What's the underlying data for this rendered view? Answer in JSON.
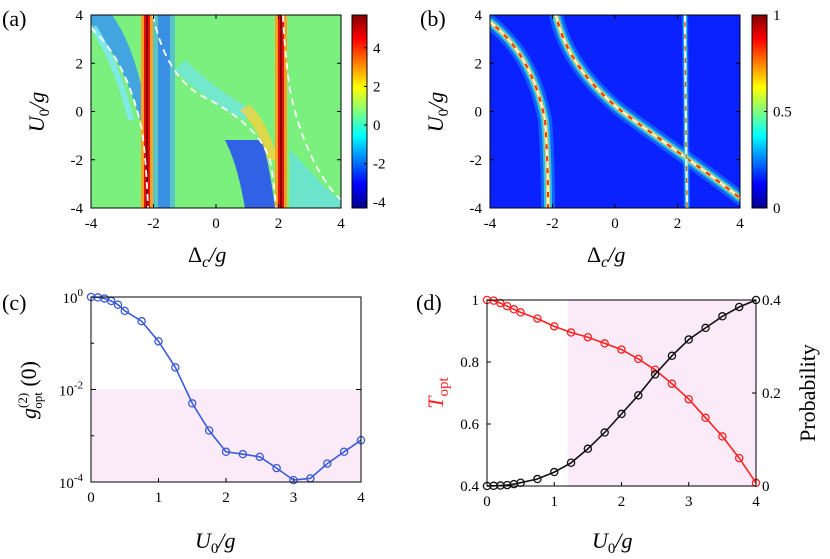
{
  "chart_data": [
    {
      "panel": "(a)",
      "type": "heatmap",
      "xlabel": "Δc/g",
      "ylabel": "U0/g",
      "xlim": [
        -4,
        4
      ],
      "ylim": [
        -4,
        4
      ],
      "xticks": [
        -4,
        -2,
        0,
        2,
        4
      ],
      "yticks": [
        -4,
        -2,
        0,
        2,
        4
      ],
      "colorbar": {
        "ticks": [
          -4,
          -2,
          0,
          2,
          4
        ],
        "range": [
          -4.3,
          5.7
        ],
        "colormap": "jet"
      },
      "overlay": "white dashed lines",
      "description_features": {
        "background_value": 0,
        "peak_lines": [
          {
            "x": -2.1,
            "value": 5.5
          },
          {
            "x": 2.0,
            "value": 5.5
          }
        ]
      }
    },
    {
      "panel": "(b)",
      "type": "heatmap",
      "xlabel": "Δc/g",
      "ylabel": "U0/g",
      "xlim": [
        -4,
        4
      ],
      "ylim": [
        -4,
        4
      ],
      "xticks": [
        -4,
        -2,
        0,
        2,
        4
      ],
      "yticks": [
        -4,
        -2,
        0,
        2,
        4
      ],
      "colorbar": {
        "ticks": [
          0,
          0.5,
          1
        ],
        "tick_labels": [
          "0",
          "0.5",
          "1"
        ],
        "range": [
          0,
          1
        ],
        "colormap": "jet"
      },
      "overlay": "white dashed lines",
      "background_value": 0
    },
    {
      "panel": "(c)",
      "type": "line",
      "xlabel": "U0/g",
      "ylabel": "g(2)opt (0)",
      "xlim": [
        0,
        4
      ],
      "ylim": [
        0.0001,
        1
      ],
      "yscale": "log",
      "xticks": [
        0,
        1,
        2,
        3,
        4
      ],
      "yticks": [
        "10^0",
        "10^-2",
        "10^-4"
      ],
      "shaded_region": {
        "x": [
          0,
          4
        ],
        "y": [
          0.0001,
          0.01
        ],
        "color": "#fbeaf8"
      },
      "series": [
        {
          "color": "#3a5bd9",
          "marker": "circle",
          "x": [
            0,
            0.1,
            0.2,
            0.3,
            0.4,
            0.5,
            0.75,
            1.0,
            1.25,
            1.5,
            1.75,
            2.0,
            2.25,
            2.5,
            2.75,
            3.0,
            3.25,
            3.5,
            3.75,
            4.0
          ],
          "y": [
            1.0,
            0.98,
            0.93,
            0.82,
            0.68,
            0.5,
            0.3,
            0.11,
            0.03,
            0.005,
            0.0013,
            0.00045,
            0.0004,
            0.00035,
            0.0002,
            0.00011,
            0.00012,
            0.00025,
            0.00045,
            0.0008
          ]
        }
      ]
    },
    {
      "panel": "(d)",
      "type": "line",
      "xlabel": "U0/g",
      "ylabel_left": "Topt",
      "ylabel_right": "Probability",
      "xlim": [
        0,
        4
      ],
      "ylim_left": [
        0.4,
        1.0
      ],
      "ylim_right": [
        0,
        0.4
      ],
      "xticks": [
        0,
        1,
        2,
        3,
        4
      ],
      "yticks_left": [
        0.4,
        0.6,
        0.8,
        1
      ],
      "yticks_right": [
        0,
        0.2,
        0.4
      ],
      "shaded_region": {
        "x": [
          1.2,
          4
        ],
        "color": "#fbeaf8"
      },
      "series": [
        {
          "axis": "left",
          "color": "#ff2222",
          "marker": "circle",
          "x": [
            0,
            0.1,
            0.2,
            0.3,
            0.4,
            0.5,
            0.75,
            1.0,
            1.25,
            1.5,
            1.75,
            2.0,
            2.25,
            2.5,
            2.75,
            3.0,
            3.25,
            3.5,
            3.75,
            4.0
          ],
          "y": [
            1.0,
            0.998,
            0.99,
            0.98,
            0.97,
            0.96,
            0.94,
            0.915,
            0.895,
            0.88,
            0.86,
            0.84,
            0.81,
            0.775,
            0.73,
            0.68,
            0.62,
            0.56,
            0.49,
            0.41
          ]
        },
        {
          "axis": "right",
          "color": "#111111",
          "marker": "circle",
          "x": [
            0,
            0.1,
            0.2,
            0.3,
            0.4,
            0.5,
            0.75,
            1.0,
            1.25,
            1.5,
            1.75,
            2.0,
            2.25,
            2.5,
            2.75,
            3.0,
            3.25,
            3.5,
            3.75,
            4.0
          ],
          "y": [
            0,
            0.0005,
            0.001,
            0.002,
            0.004,
            0.007,
            0.015,
            0.03,
            0.05,
            0.08,
            0.115,
            0.155,
            0.195,
            0.24,
            0.28,
            0.315,
            0.34,
            0.365,
            0.385,
            0.4
          ]
        }
      ]
    }
  ]
}
